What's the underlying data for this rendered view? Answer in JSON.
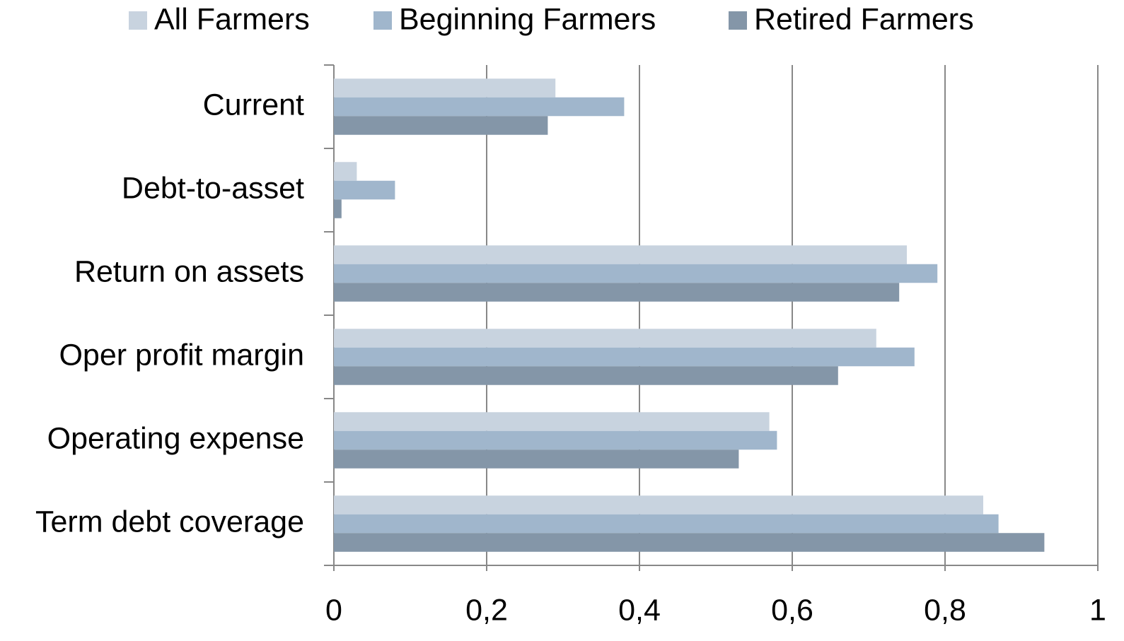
{
  "chart_data": {
    "type": "hbar",
    "categories": [
      "Current",
      "Debt-to-asset",
      "Return on assets",
      "Oper profit margin",
      "Operating expense",
      "Term debt coverage"
    ],
    "series": [
      {
        "name": "All Farmers",
        "color": "#c8d3df",
        "values": [
          0.29,
          0.03,
          0.75,
          0.71,
          0.57,
          0.85
        ]
      },
      {
        "name": "Beginning Farmers",
        "color": "#a0b6cc",
        "values": [
          0.38,
          0.08,
          0.79,
          0.76,
          0.58,
          0.87
        ]
      },
      {
        "name": "Retired Farmers",
        "color": "#8496a8",
        "values": [
          0.28,
          0.01,
          0.74,
          0.66,
          0.53,
          0.93
        ]
      }
    ],
    "xlim": [
      0,
      1
    ],
    "xticks": [
      0,
      {
        "value": 0.2,
        "label": "0,2"
      },
      {
        "value": 0.4,
        "label": "0,4"
      },
      {
        "value": 0.6,
        "label": "0,6"
      },
      {
        "value": 0.8,
        "label": "0,8"
      },
      1
    ],
    "grid": true,
    "legend": "top"
  }
}
